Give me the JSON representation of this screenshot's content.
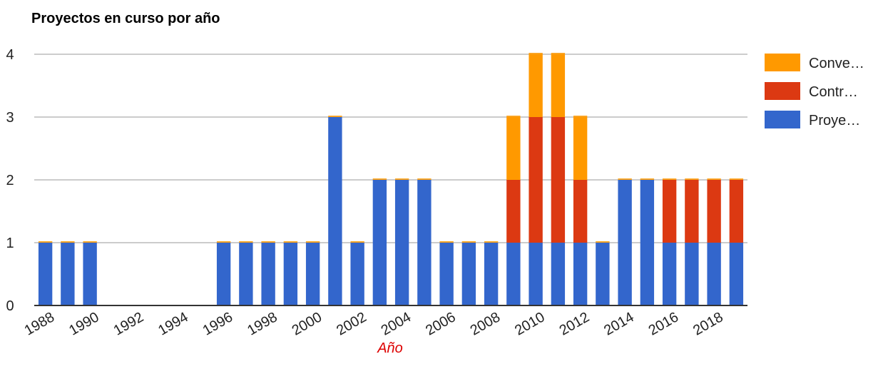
{
  "chart_data": {
    "type": "bar",
    "stacked": true,
    "title": "Proyectos en curso por año",
    "xlabel": "Año",
    "ylabel": "",
    "ylim": [
      0,
      4
    ],
    "yticks": [
      "0",
      "1",
      "2",
      "3",
      "4"
    ],
    "grid": true,
    "legend_position": "right",
    "categories": [
      "1988",
      "1989",
      "1990",
      "1991",
      "1992",
      "1993",
      "1994",
      "1995",
      "1996",
      "1997",
      "1998",
      "1999",
      "2000",
      "2001",
      "2002",
      "2003",
      "2004",
      "2005",
      "2006",
      "2007",
      "2008",
      "2009",
      "2010",
      "2011",
      "2012",
      "2013",
      "2014",
      "2015",
      "2016",
      "2017",
      "2018",
      "2019"
    ],
    "xtick_labels": [
      "1988",
      "1990",
      "1992",
      "1994",
      "1996",
      "1998",
      "2000",
      "2002",
      "2004",
      "2006",
      "2008",
      "2010",
      "2012",
      "2014",
      "2016",
      "2018"
    ],
    "series": [
      {
        "name": "Proye…",
        "color": "#3366cc",
        "values": [
          1,
          1,
          1,
          0,
          0,
          0,
          0,
          0,
          1,
          1,
          1,
          1,
          1,
          3,
          1,
          2,
          2,
          2,
          1,
          1,
          1,
          1,
          1,
          1,
          1,
          1,
          2,
          2,
          1,
          1,
          1,
          1
        ]
      },
      {
        "name": "Contr…",
        "color": "#dc3912",
        "values": [
          0,
          0,
          0,
          0,
          0,
          0,
          0,
          0,
          0,
          0,
          0,
          0,
          0,
          0,
          0,
          0,
          0,
          0,
          0,
          0,
          0,
          1,
          2,
          2,
          1,
          0,
          0,
          0,
          1,
          1,
          1,
          1
        ]
      },
      {
        "name": "Conve…",
        "color": "#ff9900",
        "values": [
          0,
          0,
          0,
          0,
          0,
          0,
          0,
          0,
          0,
          0,
          0,
          0,
          0,
          0,
          0,
          0,
          0,
          0,
          0,
          0,
          0,
          1,
          1,
          1,
          1,
          0,
          0,
          0,
          0,
          0,
          0,
          0
        ]
      }
    ],
    "colors": {
      "axis_title": "#dd0000",
      "grid": "#cccccc",
      "baseline": "#333333"
    }
  }
}
